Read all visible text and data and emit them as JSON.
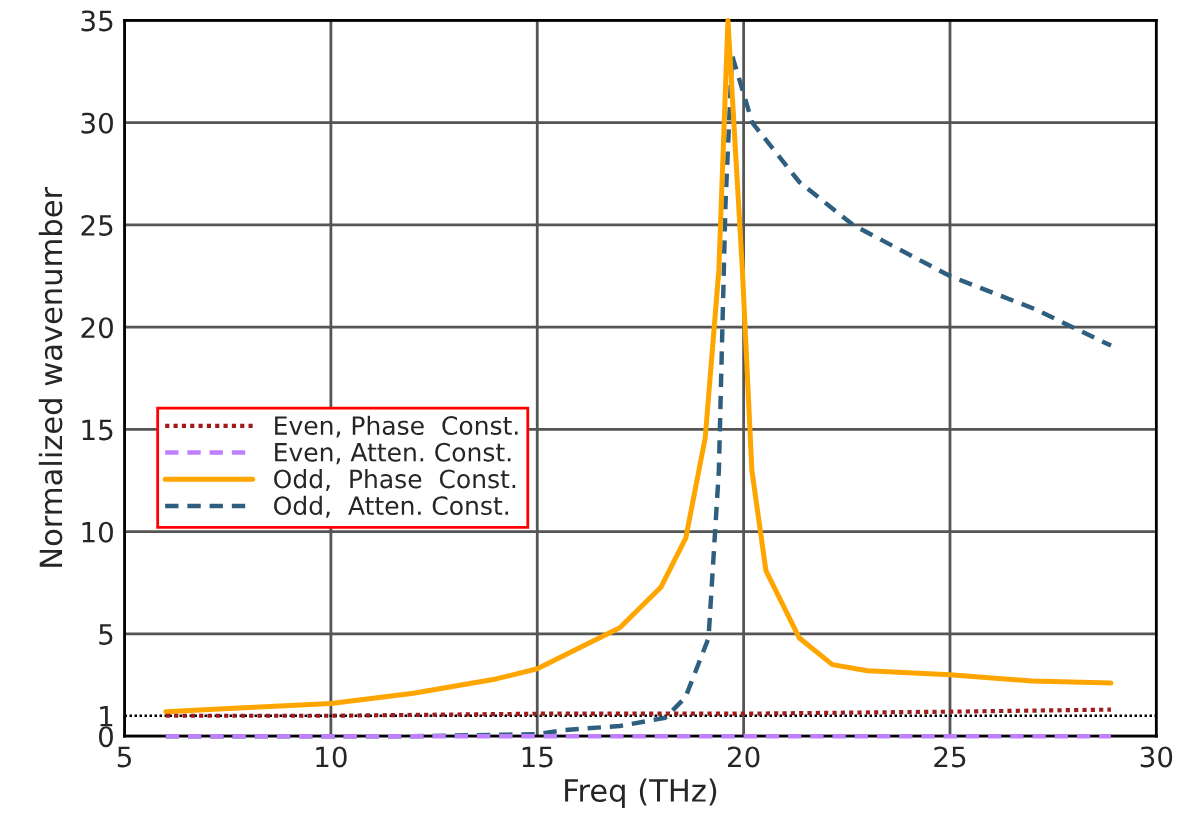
{
  "chart_data": {
    "type": "line",
    "xlabel": "Freq (THz)",
    "ylabel": "Normalized wavenumber",
    "xlim": [
      5,
      30
    ],
    "ylim": [
      0,
      35
    ],
    "xticks": [
      5,
      10,
      15,
      20,
      25,
      30
    ],
    "yticks": [
      0,
      1,
      5,
      10,
      15,
      20,
      25,
      30,
      35
    ],
    "grid": true,
    "legend": "left",
    "ref_lines": [
      {
        "axis": "y",
        "value": 1,
        "color": "#000000",
        "line_style": "dotted"
      }
    ],
    "series": [
      {
        "name": "Even, Phase  Const.",
        "color": "#a01c1c",
        "line_style": "dotted",
        "x": [
          6,
          10,
          15,
          20,
          25,
          28.9
        ],
        "values": [
          1.0,
          1.0,
          1.1,
          1.1,
          1.2,
          1.3
        ]
      },
      {
        "name": "Even, Atten. Const.",
        "color": "#bf80ff",
        "line_style": "dashed",
        "x": [
          6,
          28.9
        ],
        "values": [
          0,
          0
        ]
      },
      {
        "name": "Odd,  Phase  Const.",
        "color": "#ffa500",
        "line_style": "solid",
        "x": [
          6,
          8,
          10,
          12,
          14,
          15,
          16,
          17,
          18,
          18.6,
          19.07,
          19.4,
          19.62,
          19.97,
          20.2,
          20.54,
          21.35,
          22.15,
          23,
          25,
          27,
          28.9
        ],
        "values": [
          1.2,
          1.4,
          1.6,
          2.1,
          2.8,
          3.3,
          4.3,
          5.3,
          7.3,
          9.7,
          14.6,
          22.8,
          35,
          22.8,
          13,
          8.1,
          4.8,
          3.5,
          3.2,
          3.0,
          2.7,
          2.6
        ]
      },
      {
        "name": "Odd,  Atten. Const.",
        "color": "#2f5f7f",
        "line_style": "dashed",
        "x": [
          6,
          12,
          15,
          15.65,
          17,
          18.1,
          18.59,
          19.15,
          19.4,
          19.56,
          19.72,
          20.21,
          21.35,
          22.65,
          25,
          27.04,
          28.9
        ],
        "values": [
          0,
          0,
          0.1,
          0.3,
          0.5,
          0.9,
          1.9,
          4.8,
          13,
          26,
          33.3,
          30,
          27.1,
          25,
          22.5,
          20.9,
          19.1
        ]
      }
    ]
  }
}
